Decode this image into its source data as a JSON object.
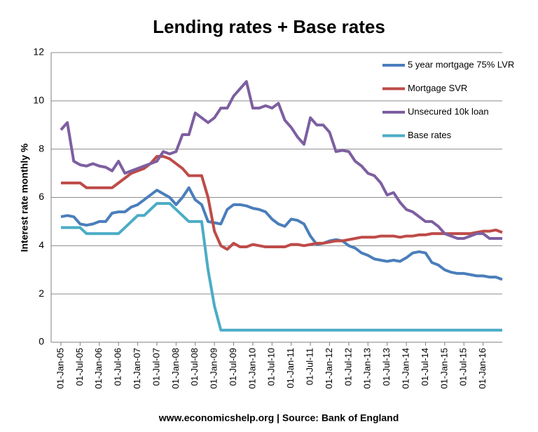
{
  "chart_data": {
    "type": "line",
    "title": "Lending rates + Base rates",
    "y_label": "Interest rate monthly %",
    "source_note": "www.economicshelp.org | Source: Bank of England",
    "categories": [
      "01-Jan-05",
      null,
      null,
      "01-Jul-05",
      null,
      null,
      "01-Jan-06",
      null,
      null,
      "01-Jul-06",
      null,
      null,
      "01-Jan-07",
      null,
      null,
      "01-Jul-07",
      null,
      null,
      "01-Jan-08",
      null,
      null,
      "01-Jul-08",
      null,
      null,
      "01-Jan-09",
      null,
      null,
      "01-Jul-09",
      null,
      null,
      "01-Jan-10",
      null,
      null,
      "01-Jul-10",
      null,
      null,
      "01-Jan-11",
      null,
      null,
      "01-Jul-11",
      null,
      null,
      "01-Jan-12",
      null,
      null,
      "01-Jul-12",
      null,
      null,
      "01-Jan-13",
      null,
      null,
      "01-Jul-13",
      null,
      null,
      "01-Jan-14",
      null,
      null,
      "01-Jul-14",
      null,
      null,
      "01-Jan-15",
      null,
      null,
      "01-Jul-15",
      null,
      null,
      "01-Jan-16",
      null,
      null,
      null
    ],
    "series": [
      {
        "name": "5 year mortgage 75% LVR",
        "color": "#4a7ebb",
        "values": [
          5.2,
          5.25,
          5.2,
          4.9,
          4.85,
          4.9,
          5.0,
          5.0,
          5.35,
          5.4,
          5.4,
          5.6,
          5.7,
          5.9,
          6.1,
          6.3,
          6.15,
          6.0,
          5.7,
          6.0,
          6.4,
          5.9,
          5.7,
          5.0,
          4.95,
          4.9,
          5.5,
          5.7,
          5.7,
          5.65,
          5.55,
          5.5,
          5.4,
          5.1,
          4.9,
          4.8,
          5.1,
          5.05,
          4.9,
          4.4,
          4.05,
          4.1,
          4.2,
          4.25,
          4.2,
          4.0,
          3.9,
          3.7,
          3.6,
          3.45,
          3.4,
          3.35,
          3.4,
          3.35,
          3.5,
          3.7,
          3.75,
          3.7,
          3.3,
          3.2,
          3.0,
          2.9,
          2.85,
          2.85,
          2.8,
          2.75,
          2.75,
          2.7,
          2.7,
          2.6
        ]
      },
      {
        "name": "Mortgage SVR",
        "color": "#be4b48",
        "values": [
          6.6,
          6.6,
          6.6,
          6.6,
          6.4,
          6.4,
          6.4,
          6.4,
          6.4,
          6.6,
          6.8,
          7.0,
          7.1,
          7.2,
          7.4,
          7.7,
          7.7,
          7.6,
          7.4,
          7.2,
          6.9,
          6.9,
          6.9,
          6.0,
          4.6,
          4.0,
          3.85,
          4.1,
          3.95,
          3.95,
          4.05,
          4.0,
          3.95,
          3.95,
          3.95,
          3.95,
          4.05,
          4.05,
          4.0,
          4.05,
          4.1,
          4.1,
          4.15,
          4.2,
          4.2,
          4.25,
          4.3,
          4.35,
          4.35,
          4.35,
          4.4,
          4.4,
          4.4,
          4.35,
          4.4,
          4.4,
          4.45,
          4.45,
          4.5,
          4.5,
          4.5,
          4.5,
          4.5,
          4.5,
          4.5,
          4.55,
          4.6,
          4.6,
          4.65,
          4.55
        ]
      },
      {
        "name": "Unsecured 10k loan",
        "color": "#7d5fa0",
        "values": [
          8.8,
          9.1,
          7.5,
          7.35,
          7.3,
          7.4,
          7.3,
          7.25,
          7.1,
          7.5,
          7.0,
          7.1,
          7.2,
          7.3,
          7.4,
          7.5,
          7.9,
          7.8,
          7.9,
          8.6,
          8.6,
          9.5,
          9.3,
          9.1,
          9.3,
          9.7,
          9.7,
          10.2,
          10.5,
          10.8,
          9.7,
          9.7,
          9.8,
          9.7,
          9.9,
          9.2,
          8.9,
          8.5,
          8.2,
          9.3,
          9.0,
          9.0,
          8.7,
          7.9,
          7.95,
          7.9,
          7.5,
          7.3,
          7.0,
          6.9,
          6.6,
          6.1,
          6.2,
          5.8,
          5.5,
          5.4,
          5.2,
          5.0,
          5.0,
          4.8,
          4.5,
          4.4,
          4.3,
          4.3,
          4.4,
          4.5,
          4.5,
          4.3,
          4.3,
          4.3
        ]
      },
      {
        "name": "Base rates",
        "color": "#4bacc6",
        "values": [
          4.75,
          4.75,
          4.75,
          4.75,
          4.5,
          4.5,
          4.5,
          4.5,
          4.5,
          4.5,
          4.75,
          5.0,
          5.25,
          5.25,
          5.5,
          5.75,
          5.75,
          5.75,
          5.5,
          5.25,
          5.0,
          5.0,
          5.0,
          3.0,
          1.5,
          0.5,
          0.5,
          0.5,
          0.5,
          0.5,
          0.5,
          0.5,
          0.5,
          0.5,
          0.5,
          0.5,
          0.5,
          0.5,
          0.5,
          0.5,
          0.5,
          0.5,
          0.5,
          0.5,
          0.5,
          0.5,
          0.5,
          0.5,
          0.5,
          0.5,
          0.5,
          0.5,
          0.5,
          0.5,
          0.5,
          0.5,
          0.5,
          0.5,
          0.5,
          0.5,
          0.5,
          0.5,
          0.5,
          0.5,
          0.5,
          0.5,
          0.5,
          0.5,
          0.5,
          0.5
        ]
      }
    ],
    "ylim": [
      0,
      12
    ],
    "yticks": [
      0,
      2,
      4,
      6,
      8,
      10,
      12
    ],
    "grid": true,
    "legend": "top-right"
  }
}
